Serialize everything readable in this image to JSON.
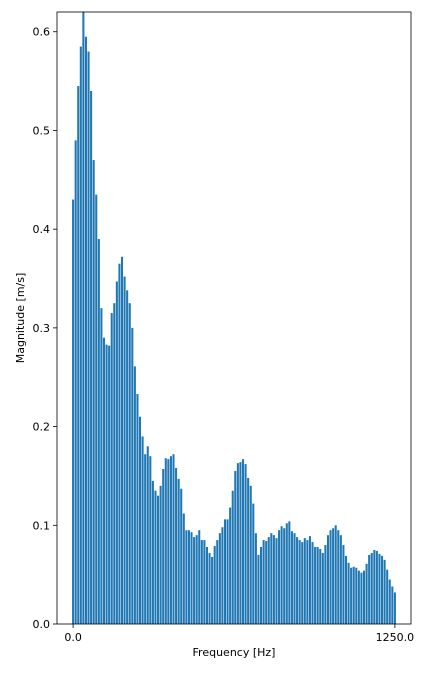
{
  "chart_data": {
    "type": "bar",
    "x_label": "Frequency [Hz]",
    "y_label": "Magnitude [m/s]",
    "color": "#1f77b4",
    "x": [
      0,
      10,
      20,
      30,
      40,
      50,
      60,
      70,
      80,
      90,
      100,
      110,
      120,
      130,
      140,
      150,
      160,
      170,
      180,
      190,
      200,
      210,
      220,
      230,
      240,
      250,
      260,
      270,
      280,
      290,
      300,
      310,
      320,
      330,
      340,
      350,
      360,
      370,
      380,
      390,
      400,
      410,
      420,
      430,
      440,
      450,
      460,
      470,
      480,
      490,
      500,
      510,
      520,
      530,
      540,
      550,
      560,
      570,
      580,
      590,
      600,
      610,
      620,
      630,
      640,
      650,
      660,
      670,
      680,
      690,
      700,
      710,
      720,
      730,
      740,
      750,
      760,
      770,
      780,
      790,
      800,
      810,
      820,
      830,
      840,
      850,
      860,
      870,
      880,
      890,
      900,
      910,
      920,
      930,
      940,
      950,
      960,
      970,
      980,
      990,
      1000,
      1010,
      1020,
      1030,
      1040,
      1050,
      1060,
      1070,
      1080,
      1090,
      1100,
      1110,
      1120,
      1130,
      1140,
      1150,
      1160,
      1170,
      1180,
      1190,
      1200,
      1210,
      1220,
      1230,
      1240,
      1250
    ],
    "values": [
      0.43,
      0.49,
      0.545,
      0.585,
      0.63,
      0.595,
      0.58,
      0.54,
      0.47,
      0.435,
      0.39,
      0.32,
      0.29,
      0.283,
      0.282,
      0.315,
      0.325,
      0.347,
      0.365,
      0.372,
      0.352,
      0.338,
      0.325,
      0.3,
      0.261,
      0.233,
      0.21,
      0.19,
      0.172,
      0.18,
      0.17,
      0.145,
      0.135,
      0.13,
      0.14,
      0.157,
      0.168,
      0.167,
      0.17,
      0.172,
      0.158,
      0.147,
      0.137,
      0.112,
      0.095,
      0.095,
      0.093,
      0.088,
      0.09,
      0.095,
      0.085,
      0.085,
      0.078,
      0.072,
      0.068,
      0.079,
      0.085,
      0.092,
      0.098,
      0.106,
      0.106,
      0.118,
      0.135,
      0.155,
      0.163,
      0.164,
      0.167,
      0.162,
      0.148,
      0.14,
      0.122,
      0.092,
      0.07,
      0.078,
      0.085,
      0.084,
      0.088,
      0.092,
      0.09,
      0.087,
      0.095,
      0.099,
      0.097,
      0.102,
      0.104,
      0.094,
      0.092,
      0.088,
      0.085,
      0.083,
      0.087,
      0.085,
      0.089,
      0.083,
      0.078,
      0.078,
      0.076,
      0.072,
      0.08,
      0.09,
      0.095,
      0.097,
      0.1,
      0.095,
      0.09,
      0.08,
      0.069,
      0.062,
      0.057,
      0.058,
      0.057,
      0.054,
      0.052,
      0.054,
      0.061,
      0.07,
      0.072,
      0.075,
      0.074,
      0.071,
      0.069,
      0.065,
      0.055,
      0.045,
      0.038,
      0.032
    ],
    "xlim": [
      -62.5,
      1312.5
    ],
    "xticks": [
      {
        "value": 0,
        "label": "0.0"
      },
      {
        "value": 1250,
        "label": "1250.0"
      }
    ],
    "ylim": [
      0,
      0.62
    ],
    "yticks": [
      {
        "value": 0,
        "label": "0.0"
      },
      0.1,
      0.2,
      0.3,
      0.4,
      0.5,
      0.6
    ]
  }
}
